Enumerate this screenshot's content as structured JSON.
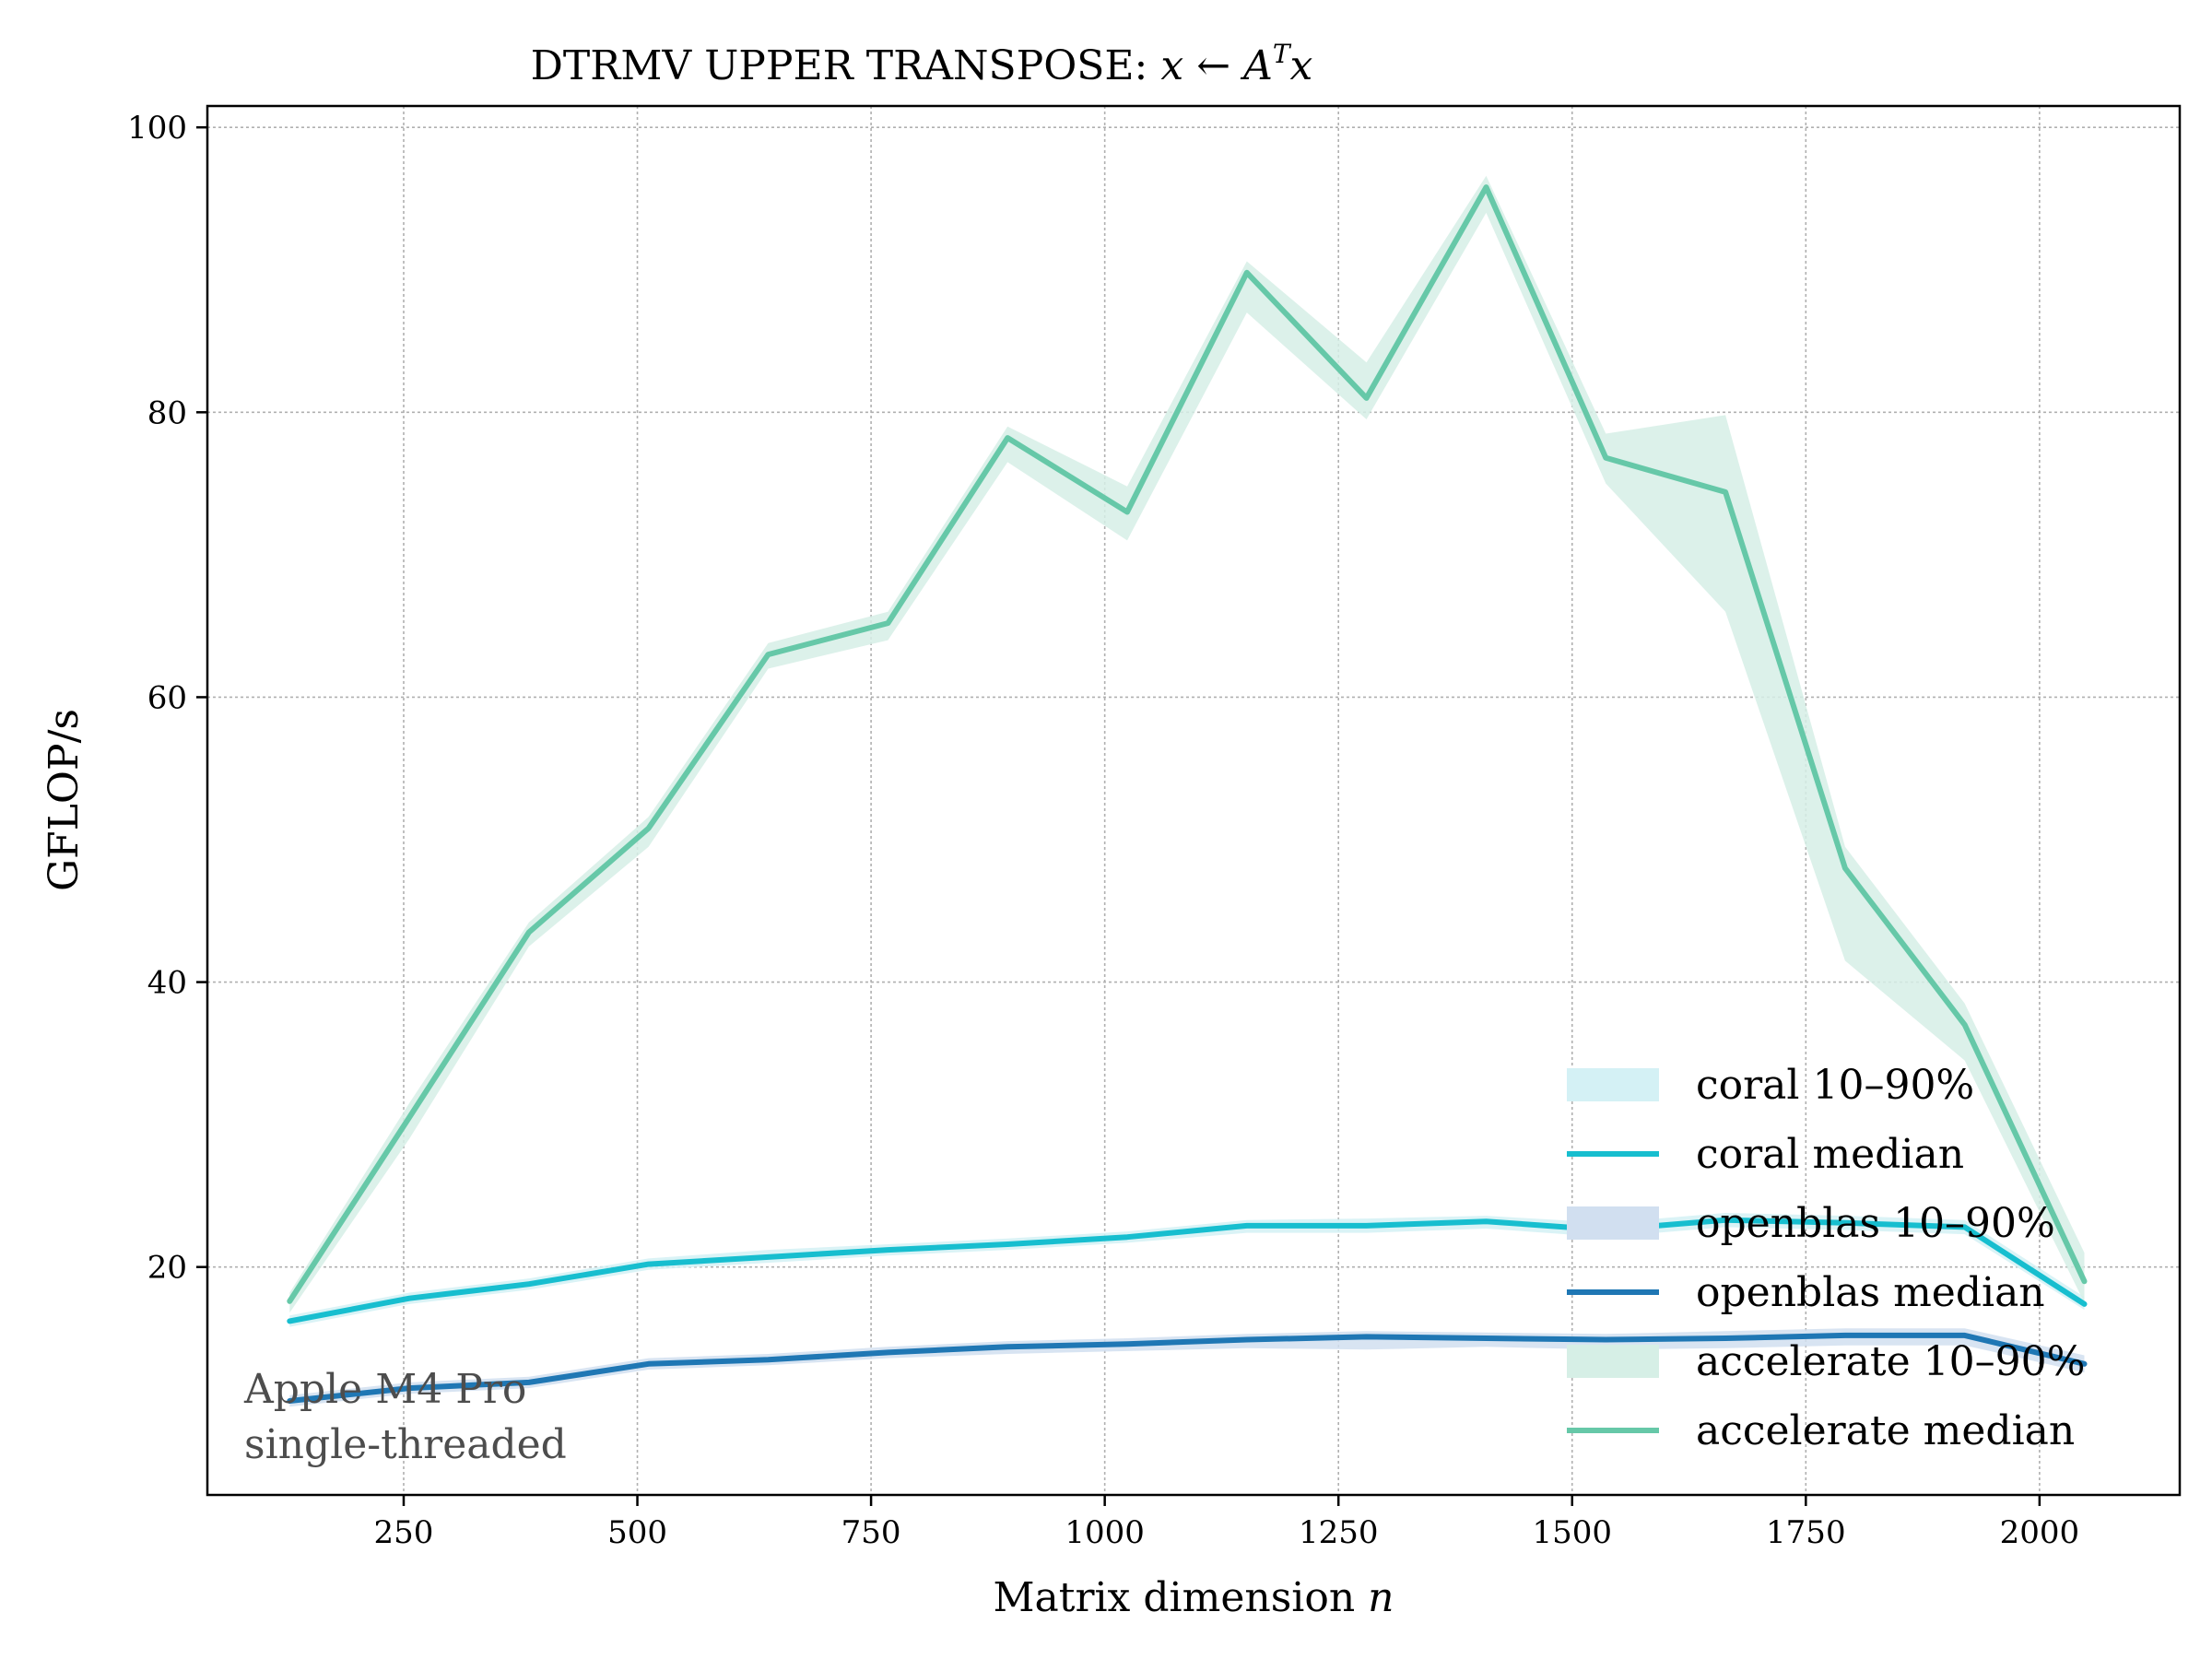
{
  "chart_data": {
    "type": "line",
    "title": "DTRMV UPPER TRANSPOSE: ",
    "title_math": {
      "lhs": "x",
      "arrow": "←",
      "rhs_base": "A",
      "rhs_sup": "T",
      "rhs_tail": "x"
    },
    "xlabel": "Matrix dimension ",
    "xlabel_math": "n",
    "ylabel": "GFLOP/s",
    "xlim": [
      40,
      2150
    ],
    "ylim": [
      4,
      101.5
    ],
    "xticks": [
      250,
      500,
      750,
      1000,
      1250,
      1500,
      1750,
      2000
    ],
    "yticks": [
      20,
      40,
      60,
      80,
      100
    ],
    "grid": true,
    "legend_position": "lower-right",
    "x": [
      128,
      256,
      384,
      512,
      640,
      768,
      896,
      1024,
      1152,
      1280,
      1408,
      1536,
      1664,
      1792,
      1920,
      2048
    ],
    "series": [
      {
        "name": "coral median",
        "band_name": "coral 10–90%",
        "color": "#17becf",
        "band_color": "#d4f1f5",
        "values": [
          16.2,
          17.8,
          18.8,
          20.2,
          20.7,
          21.2,
          21.6,
          22.1,
          22.9,
          22.9,
          23.2,
          22.6,
          23.3,
          23.1,
          22.8,
          17.4
        ],
        "p10": [
          15.8,
          17.4,
          18.4,
          19.8,
          20.3,
          20.8,
          21.2,
          21.7,
          22.4,
          22.4,
          22.7,
          22.1,
          22.8,
          22.6,
          22.3,
          17.0
        ],
        "p90": [
          16.6,
          18.2,
          19.2,
          20.6,
          21.2,
          21.6,
          22.0,
          22.5,
          23.3,
          23.4,
          23.6,
          23.1,
          23.8,
          23.6,
          23.3,
          17.9
        ]
      },
      {
        "name": "openblas median",
        "band_name": "openblas 10–90%",
        "color": "#1f77b4",
        "band_color": "#d1dff0",
        "values": [
          10.6,
          11.5,
          11.9,
          13.2,
          13.5,
          14.0,
          14.4,
          14.6,
          14.9,
          15.1,
          15.0,
          14.9,
          15.0,
          15.2,
          15.2,
          13.2
        ],
        "p10": [
          10.2,
          11.1,
          11.5,
          12.8,
          13.1,
          13.6,
          13.9,
          14.1,
          14.3,
          14.2,
          14.4,
          14.2,
          14.3,
          14.5,
          14.5,
          12.6
        ],
        "p90": [
          11.0,
          11.9,
          12.3,
          13.6,
          13.9,
          14.4,
          14.8,
          15.0,
          15.3,
          15.5,
          15.4,
          15.3,
          15.5,
          15.7,
          15.7,
          13.8
        ]
      },
      {
        "name": "accelerate median",
        "band_name": "accelerate 10–90%",
        "color": "#66c8a8",
        "band_color": "#d6efe6",
        "values": [
          17.6,
          30.5,
          43.5,
          50.8,
          63.0,
          65.2,
          78.2,
          73.0,
          89.8,
          81.0,
          95.8,
          76.8,
          74.4,
          48.0,
          37.0,
          19.0
        ],
        "p10": [
          16.8,
          29.0,
          42.5,
          49.5,
          62.0,
          64.0,
          76.5,
          71.0,
          87.0,
          79.5,
          94.0,
          75.0,
          66.0,
          41.5,
          34.5,
          17.5
        ],
        "p90": [
          18.2,
          31.5,
          44.2,
          51.6,
          63.8,
          66.0,
          79.0,
          74.8,
          90.6,
          83.5,
          96.6,
          78.5,
          79.8,
          49.5,
          38.5,
          21.0
        ]
      }
    ],
    "annotation": [
      "Apple M4 Pro",
      "single-threaded"
    ]
  }
}
